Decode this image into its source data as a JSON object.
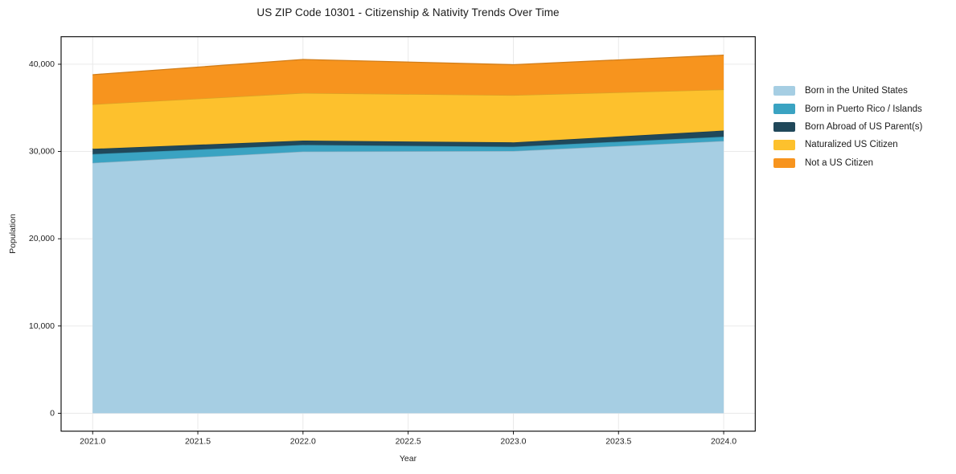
{
  "title": "US ZIP Code 10301 - Citizenship & Nativity Trends Over Time",
  "chart_data": {
    "type": "area",
    "stacked": true,
    "title": "US ZIP Code 10301 - Citizenship & Nativity Trends Over Time",
    "xlabel": "Year",
    "ylabel": "Population",
    "x": [
      2021,
      2022,
      2023,
      2024
    ],
    "series": [
      {
        "name": "Born in the United States",
        "color": "#a6cee3",
        "values": [
          28700,
          30000,
          30050,
          31200
        ]
      },
      {
        "name": "Born in Puerto Rico / Islands",
        "color": "#3aa3c2",
        "values": [
          1000,
          750,
          500,
          500
        ]
      },
      {
        "name": "Born Abroad of US Parent(s)",
        "color": "#20485a",
        "values": [
          600,
          500,
          500,
          700
        ]
      },
      {
        "name": "Naturalized US Citizen",
        "color": "#fdc12d",
        "values": [
          5100,
          5450,
          5400,
          4700
        ]
      },
      {
        "name": "Not a US Citizen",
        "color": "#f7941e",
        "values": [
          3400,
          3850,
          3500,
          3950
        ]
      }
    ],
    "totals": [
      38800,
      40550,
      39950,
      41050
    ],
    "x_ticks": [
      2021.0,
      2021.5,
      2022.0,
      2022.5,
      2023.0,
      2023.5,
      2024.0
    ],
    "x_tick_labels": [
      "2021.0",
      "2021.5",
      "2022.0",
      "2022.5",
      "2023.0",
      "2023.5",
      "2024.0"
    ],
    "y_ticks": [
      0,
      10000,
      20000,
      30000,
      40000
    ],
    "y_tick_labels": [
      "0",
      "10,000",
      "20,000",
      "30,000",
      "40,000"
    ],
    "xlim": [
      2020.85,
      2024.15
    ],
    "ylim": [
      -2055,
      43155
    ],
    "grid": true,
    "grid_color": "#e7e7e7",
    "spine_color": "#000000",
    "tick_color": "#000000",
    "legend_position": "right-outside"
  }
}
